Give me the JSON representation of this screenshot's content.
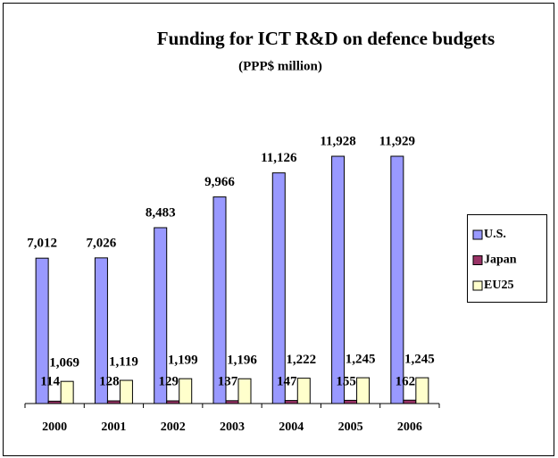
{
  "chart_data": {
    "type": "bar",
    "title": "Funding for ICT R&D on defence budgets",
    "subtitle": "(PPP$ million)",
    "categories": [
      "2000",
      "2001",
      "2002",
      "2003",
      "2004",
      "2005",
      "2006"
    ],
    "series": [
      {
        "name": "U.S.",
        "color": "#9999ff",
        "values": [
          7012,
          7026,
          8483,
          9966,
          11126,
          11928,
          11929
        ],
        "value_labels": [
          "7,012",
          "7,026",
          "8,483",
          "9,966",
          "11,126",
          "11,928",
          "11,929"
        ]
      },
      {
        "name": "Japan",
        "color": "#993366",
        "values": [
          114,
          128,
          129,
          137,
          147,
          155,
          162
        ]
      },
      {
        "name": "EU25",
        "color": "#ffffcc",
        "values": [
          1069,
          1119,
          1199,
          1196,
          1222,
          1245,
          1245
        ],
        "value_labels": [
          "1,069",
          "1,119",
          "1,199",
          "1,196",
          "1,222",
          "1,245",
          "1,245"
        ]
      }
    ],
    "legend": "right"
  }
}
